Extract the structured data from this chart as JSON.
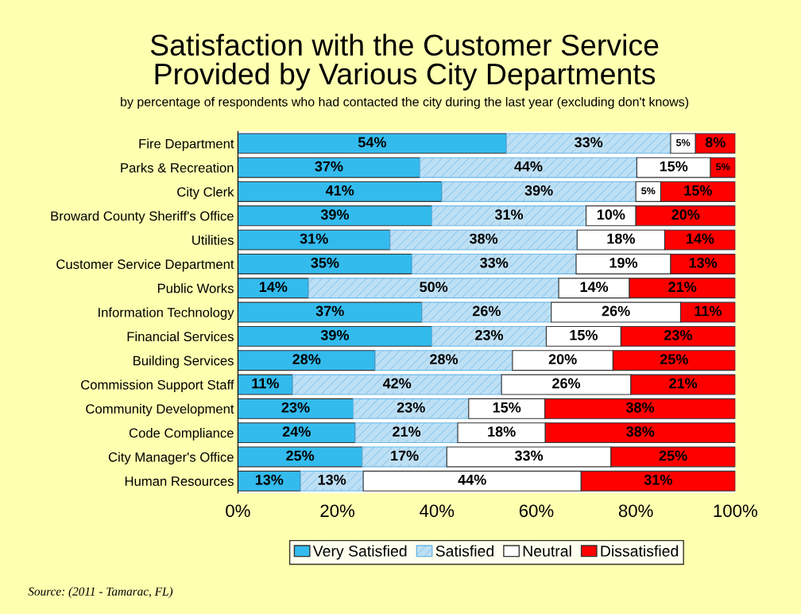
{
  "chart_data": {
    "type": "bar",
    "orientation": "horizontal",
    "stacked": true,
    "title": "Satisfaction with the Customer Service\nProvided by Various City Departments",
    "subtitle": "by percentage of respondents who had contacted the city during the last year (excluding don't knows)",
    "categories": [
      "Fire Department",
      "Parks & Recreation",
      "City Clerk",
      "Broward County Sheriff's Office",
      "Utilities",
      "Customer Service Department",
      "Public Works",
      "Information Technology",
      "Financial Services",
      "Building Services",
      "Commission Support Staff",
      "Community Development",
      "Code Compliance",
      "City Manager's Office",
      "Human Resources"
    ],
    "series": [
      {
        "name": "Very Satisfied",
        "color": "#33bbee",
        "values": [
          54,
          36.6,
          41,
          39,
          30.6,
          35,
          14.2,
          37,
          39,
          27.6,
          11,
          23.2,
          23.6,
          25,
          12.6
        ],
        "value_labels": [
          "54%",
          "37%",
          "41%",
          "39%",
          "31%",
          "35%",
          "14%",
          "37%",
          "39%",
          "28%",
          "11%",
          "23%",
          "24%",
          "25%",
          "13%"
        ]
      },
      {
        "name": "Satisfied",
        "color": "#6cb8e6",
        "values": [
          33,
          43.6,
          39,
          31,
          37.6,
          33,
          50.3,
          26,
          23,
          27.6,
          42,
          23.2,
          20.6,
          17,
          12.6
        ],
        "value_labels": [
          "33%",
          "44%",
          "39%",
          "31%",
          "38%",
          "33%",
          "50%",
          "26%",
          "23%",
          "28%",
          "42%",
          "23%",
          "21%",
          "17%",
          "13%"
        ]
      },
      {
        "name": "Neutral",
        "color": "#ffffff",
        "values": [
          5,
          14.8,
          5,
          10,
          17.6,
          19,
          14.2,
          26,
          15,
          20.2,
          26,
          15.3,
          17.6,
          33,
          43.8
        ],
        "value_labels": [
          "5%",
          "15%",
          "5%",
          "10%",
          "18%",
          "19%",
          "14%",
          "26%",
          "15%",
          "20%",
          "26%",
          "15%",
          "18%",
          "33%",
          "44%"
        ]
      },
      {
        "name": "Dissatisfied",
        "color": "#ff0000",
        "values": [
          8,
          5.0,
          15,
          20,
          14.2,
          13,
          21.3,
          11,
          23,
          24.6,
          21,
          38.3,
          38.2,
          25,
          31.0
        ],
        "value_labels": [
          "8%",
          "5%",
          "15%",
          "20%",
          "14%",
          "13%",
          "21%",
          "11%",
          "23%",
          "25%",
          "21%",
          "38%",
          "38%",
          "25%",
          "31%"
        ]
      }
    ],
    "xlim": [
      0,
      100
    ],
    "xticks": [
      {
        "value": 0,
        "label": "0%"
      },
      {
        "value": 20,
        "label": "20%"
      },
      {
        "value": 40,
        "label": "40%"
      },
      {
        "value": 60,
        "label": "60%"
      },
      {
        "value": 80,
        "label": "80%"
      },
      {
        "value": 100,
        "label": "100%"
      }
    ],
    "legend": "bottom",
    "grid": false,
    "annotations": [
      "Source: (2011 - Tamarac, FL)"
    ]
  }
}
